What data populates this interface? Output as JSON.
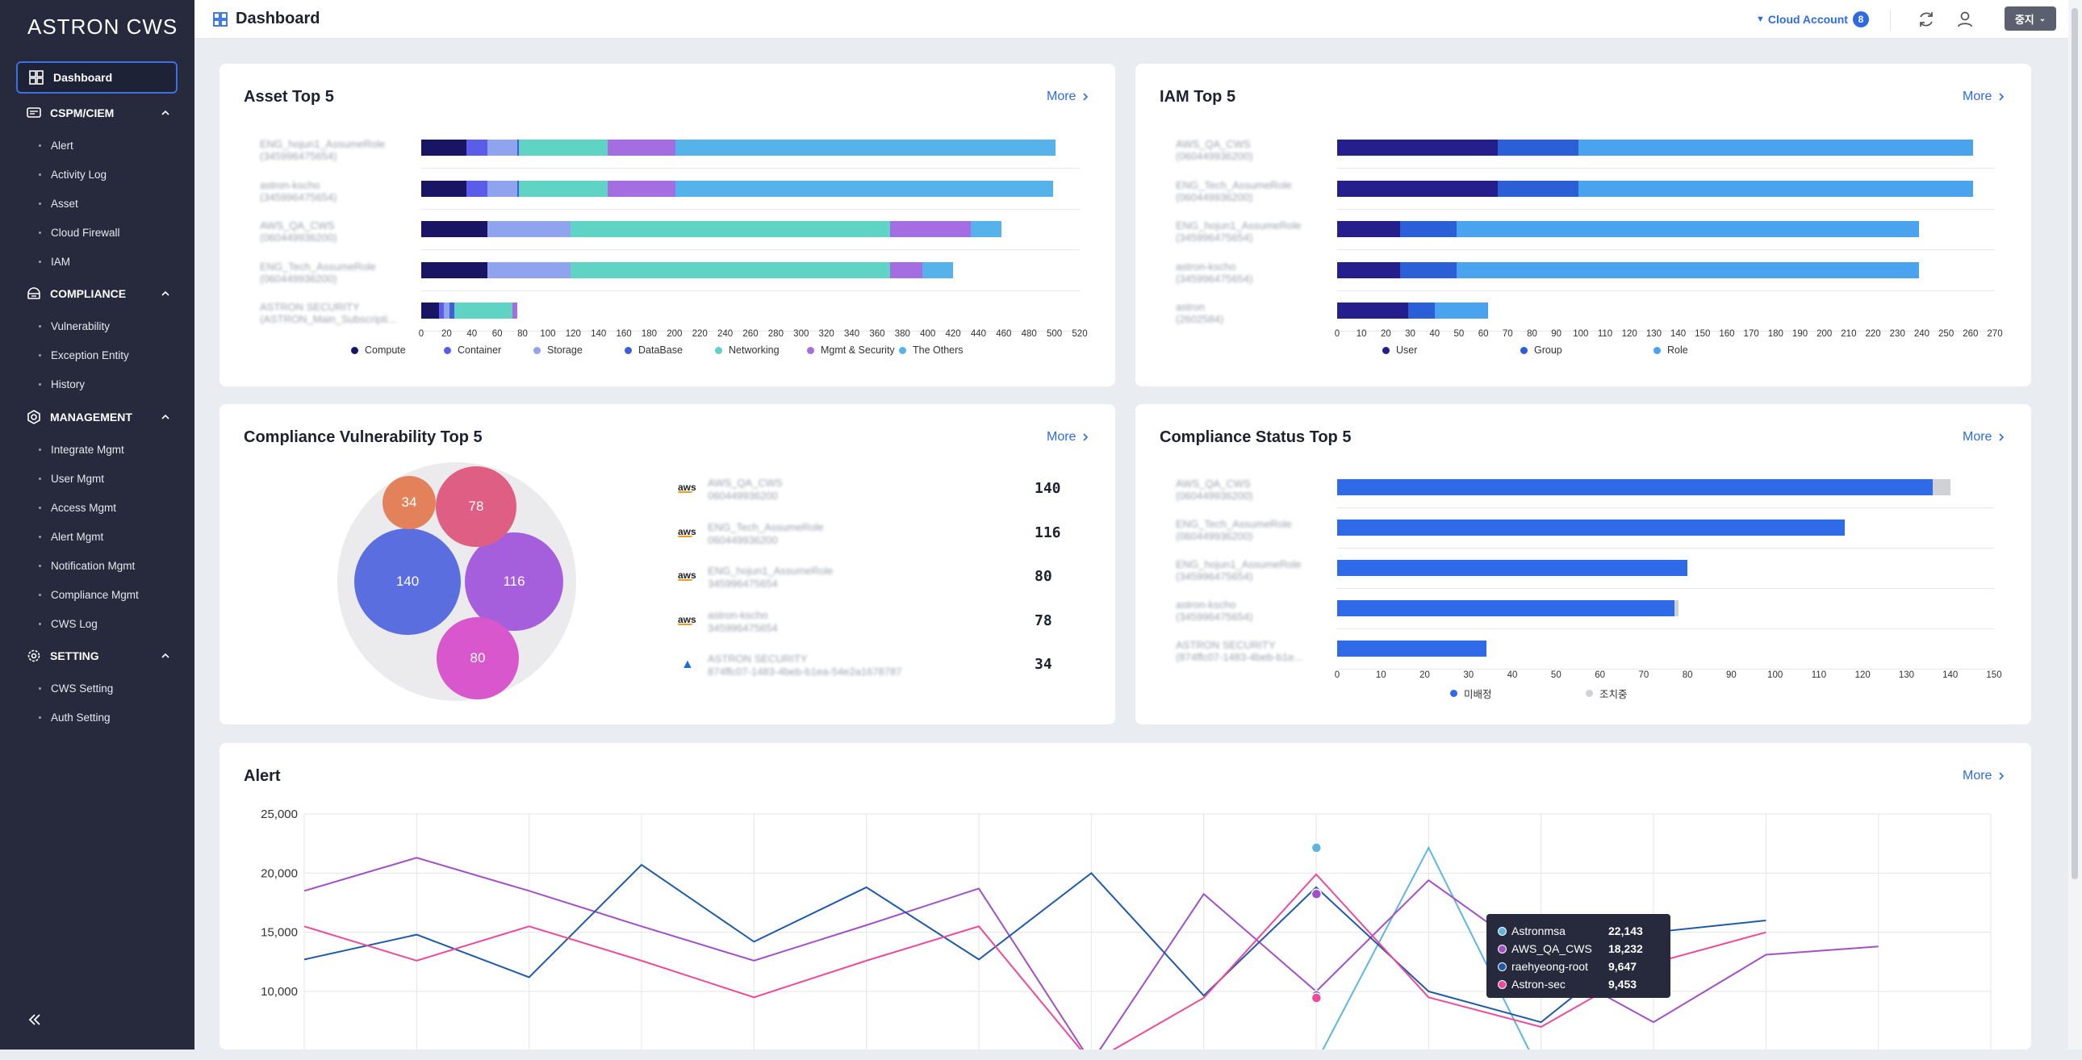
{
  "app": {
    "logo": "ASTRON CWS",
    "page_title": "Dashboard"
  },
  "topbar": {
    "cloud_account_label": "Cloud Account",
    "cloud_account_count": "8",
    "lang": "중지"
  },
  "sidebar": {
    "active": "Dashboard",
    "sections": [
      {
        "label": "CSPM/CIEM",
        "items": [
          "Alert",
          "Activity Log",
          "Asset",
          "Cloud Firewall",
          "IAM"
        ]
      },
      {
        "label": "COMPLIANCE",
        "items": [
          "Vulnerability",
          "Exception Entity",
          "History"
        ]
      },
      {
        "label": "MANAGEMENT",
        "items": [
          "Integrate Mgmt",
          "User Mgmt",
          "Access Mgmt",
          "Alert Mgmt",
          "Notification Mgmt",
          "Compliance Mgmt",
          "CWS Log"
        ]
      },
      {
        "label": "SETTING",
        "items": [
          "CWS Setting",
          "Auth Setting"
        ]
      }
    ]
  },
  "more_label": "More",
  "asset_top5": {
    "title": "Asset Top 5",
    "rows": [
      {
        "name": "ENG_hojun1_AssumeRole",
        "id": "(345996475654)"
      },
      {
        "name": "astron-kscho",
        "id": "(345996475654)"
      },
      {
        "name": "AWS_QA_CWS",
        "id": "(060449936200)"
      },
      {
        "name": "ENG_Tech_AssumeRole",
        "id": "(060449936200)"
      },
      {
        "name": "ASTRON SECURITY",
        "id": "(ASTRON_Main_Subscripti..."
      }
    ],
    "colors": [
      "#1a1464",
      "#5b5ce8",
      "#8fa3ee",
      "#3f5fd6",
      "#5fd4c4",
      "#a56de2",
      "#56b2ea"
    ],
    "legend": [
      "Compute",
      "Container",
      "Storage",
      "DataBase",
      "Networking",
      "Mgmt & Security",
      "The Others"
    ],
    "x_ticks": [
      "0",
      "20",
      "40",
      "60",
      "80",
      "100",
      "120",
      "140",
      "160",
      "180",
      "200",
      "220",
      "240",
      "260",
      "280",
      "300",
      "320",
      "340",
      "360",
      "380",
      "400",
      "420",
      "440",
      "460",
      "480",
      "500",
      "520"
    ],
    "x_max": 520,
    "values": [
      [
        36,
        16,
        24,
        1,
        70,
        54,
        300
      ],
      [
        36,
        16,
        24,
        1,
        70,
        54,
        298
      ],
      [
        52,
        0,
        66,
        0,
        252,
        64,
        24
      ],
      [
        52,
        0,
        66,
        0,
        252,
        26,
        24
      ],
      [
        14,
        4,
        4,
        4,
        46,
        4,
        0
      ]
    ]
  },
  "iam_top5": {
    "title": "IAM Top 5",
    "rows": [
      {
        "name": "AWS_QA_CWS",
        "id": "(060449936200)"
      },
      {
        "name": "ENG_Tech_AssumeRole",
        "id": "(060449936200)"
      },
      {
        "name": "ENG_hojun1_AssumeRole",
        "id": "(345996475654)"
      },
      {
        "name": "astron-kscho",
        "id": "(345996475654)"
      },
      {
        "name": "astron",
        "id": "(2602584)"
      }
    ],
    "colors": [
      "#251f8e",
      "#2a5fd8",
      "#4aa3ee"
    ],
    "legend": [
      "User",
      "Group",
      "Role"
    ],
    "x_ticks": [
      "0",
      "10",
      "20",
      "30",
      "40",
      "50",
      "60",
      "70",
      "80",
      "90",
      "100",
      "110",
      "120",
      "130",
      "140",
      "150",
      "160",
      "170",
      "180",
      "190",
      "200",
      "210",
      "220",
      "230",
      "240",
      "250",
      "260",
      "270"
    ],
    "x_max": 270,
    "values": [
      [
        66,
        33,
        162
      ],
      [
        66,
        33,
        162
      ],
      [
        26,
        23,
        190
      ],
      [
        26,
        23,
        190
      ],
      [
        29,
        11,
        22
      ]
    ]
  },
  "vulnerability_top5": {
    "title": "Compliance Vulnerability Top 5",
    "rows": [
      {
        "provider": "aws",
        "name": "AWS_QA_CWS",
        "id": "060449936200",
        "value": "140"
      },
      {
        "provider": "aws",
        "name": "ENG_Tech_AssumeRole",
        "id": "060449936200",
        "value": "116"
      },
      {
        "provider": "aws",
        "name": "ENG_hojun1_AssumeRole",
        "id": "345996475654",
        "value": "80"
      },
      {
        "provider": "aws",
        "name": "astron-kscho",
        "id": "345996475654",
        "value": "78"
      },
      {
        "provider": "azure",
        "name": "ASTRON SECURITY",
        "id": "874ffc07-1483-4beb-b1ea-54e2a1678787",
        "value": "34"
      }
    ],
    "bubbles": [
      {
        "value": "140",
        "color": "#5a6ee0"
      },
      {
        "value": "116",
        "color": "#a55fdc"
      },
      {
        "value": "80",
        "color": "#d957cc"
      },
      {
        "value": "78",
        "color": "#df5f84"
      },
      {
        "value": "34",
        "color": "#e3825a"
      }
    ]
  },
  "compliance_status_top5": {
    "title": "Compliance Status Top 5",
    "rows": [
      {
        "name": "AWS_QA_CWS",
        "id": "(060449936200)"
      },
      {
        "name": "ENG_Tech_AssumeRole",
        "id": "(060449936200)"
      },
      {
        "name": "ENG_hojun1_AssumeRole",
        "id": "(345996475654)"
      },
      {
        "name": "astron-kscho",
        "id": "(345996475654)"
      },
      {
        "name": "ASTRON SECURITY",
        "id": "(874ffc07-1483-4beb-b1e..."
      }
    ],
    "colors": [
      "#2f6be8",
      "#cfd1d6"
    ],
    "legend": [
      "미배정",
      "조치중"
    ],
    "x_ticks": [
      "0",
      "10",
      "20",
      "30",
      "40",
      "50",
      "60",
      "70",
      "80",
      "90",
      "100",
      "110",
      "120",
      "130",
      "140",
      "150"
    ],
    "x_max": 150,
    "values": [
      [
        136,
        4
      ],
      [
        116,
        0
      ],
      [
        80,
        0
      ],
      [
        77,
        1
      ],
      [
        34,
        0
      ]
    ]
  },
  "alert": {
    "title": "Alert",
    "y_ticks": [
      "25,000",
      "20,000",
      "15,000",
      "10,000"
    ],
    "tooltip": [
      {
        "name": "Astronmsa",
        "value": "22,143",
        "color": "#5eb6e0"
      },
      {
        "name": "AWS_QA_CWS",
        "value": "18,232",
        "color": "#a150c8"
      },
      {
        "name": "raehyeong-root",
        "value": "9,647",
        "color": "#1f5aa8"
      },
      {
        "name": "Astron-sec",
        "value": "9,453",
        "color": "#ee4a9a"
      }
    ]
  },
  "chart_data": [
    {
      "type": "bar",
      "title": "Asset Top 5",
      "orientation": "horizontal",
      "stacked": true,
      "categories": [
        "ENG_hojun1_AssumeRole",
        "astron-kscho",
        "AWS_QA_CWS",
        "ENG_Tech_AssumeRole",
        "ASTRON SECURITY"
      ],
      "series": [
        {
          "name": "Compute",
          "values": [
            36,
            36,
            52,
            52,
            14
          ]
        },
        {
          "name": "Container",
          "values": [
            16,
            16,
            0,
            0,
            4
          ]
        },
        {
          "name": "Storage",
          "values": [
            24,
            24,
            66,
            66,
            4
          ]
        },
        {
          "name": "DataBase",
          "values": [
            1,
            1,
            0,
            0,
            4
          ]
        },
        {
          "name": "Networking",
          "values": [
            70,
            70,
            252,
            252,
            46
          ]
        },
        {
          "name": "Mgmt & Security",
          "values": [
            54,
            54,
            64,
            26,
            4
          ]
        },
        {
          "name": "The Others",
          "values": [
            300,
            298,
            24,
            24,
            0
          ]
        }
      ],
      "xlim": [
        0,
        520
      ],
      "legend": "bottom"
    },
    {
      "type": "bar",
      "title": "IAM Top 5",
      "orientation": "horizontal",
      "stacked": true,
      "categories": [
        "AWS_QA_CWS",
        "ENG_Tech_AssumeRole",
        "ENG_hojun1_AssumeRole",
        "astron-kscho",
        "astron"
      ],
      "series": [
        {
          "name": "User",
          "values": [
            66,
            66,
            26,
            26,
            29
          ]
        },
        {
          "name": "Group",
          "values": [
            33,
            33,
            23,
            23,
            11
          ]
        },
        {
          "name": "Role",
          "values": [
            162,
            162,
            190,
            190,
            22
          ]
        }
      ],
      "xlim": [
        0,
        270
      ],
      "legend": "bottom"
    },
    {
      "type": "bar",
      "title": "Compliance Status Top 5",
      "orientation": "horizontal",
      "stacked": true,
      "categories": [
        "AWS_QA_CWS",
        "ENG_Tech_AssumeRole",
        "ENG_hojun1_AssumeRole",
        "astron-kscho",
        "ASTRON SECURITY"
      ],
      "series": [
        {
          "name": "미배정",
          "values": [
            136,
            116,
            80,
            77,
            34
          ]
        },
        {
          "name": "조치중",
          "values": [
            4,
            0,
            0,
            1,
            0
          ]
        }
      ],
      "xlim": [
        0,
        150
      ],
      "legend": "bottom"
    },
    {
      "type": "scatter",
      "title": "Compliance Vulnerability Top 5",
      "style": "bubble",
      "values": [
        140,
        116,
        80,
        78,
        34
      ]
    },
    {
      "type": "line",
      "title": "Alert",
      "x": [
        0,
        1,
        2,
        3,
        4,
        5,
        6,
        7,
        8,
        9,
        10,
        11,
        12,
        13,
        14,
        15
      ],
      "ylim": [
        5000,
        25000
      ],
      "series": [
        {
          "name": "Astronmsa",
          "values": [
            null,
            null,
            null,
            null,
            null,
            null,
            null,
            null,
            null,
            4000,
            22143,
            3000,
            null,
            null,
            null,
            null
          ]
        },
        {
          "name": "AWS_QA_CWS",
          "values": [
            18500,
            21300,
            18500,
            15500,
            12600,
            15600,
            18700,
            4000,
            18232,
            10000,
            19400,
            12600,
            7400,
            13100,
            13800,
            null
          ]
        },
        {
          "name": "raehyeong-root",
          "values": [
            12700,
            14800,
            11200,
            20700,
            14200,
            18800,
            12700,
            20000,
            9647,
            18800,
            10000,
            7400,
            15000,
            16000,
            null,
            null
          ]
        },
        {
          "name": "Astron-sec",
          "values": [
            15500,
            12600,
            15500,
            12600,
            9500,
            12600,
            15500,
            4000,
            9453,
            19900,
            9500,
            7000,
            12400,
            15000,
            null,
            null
          ]
        }
      ]
    }
  ]
}
